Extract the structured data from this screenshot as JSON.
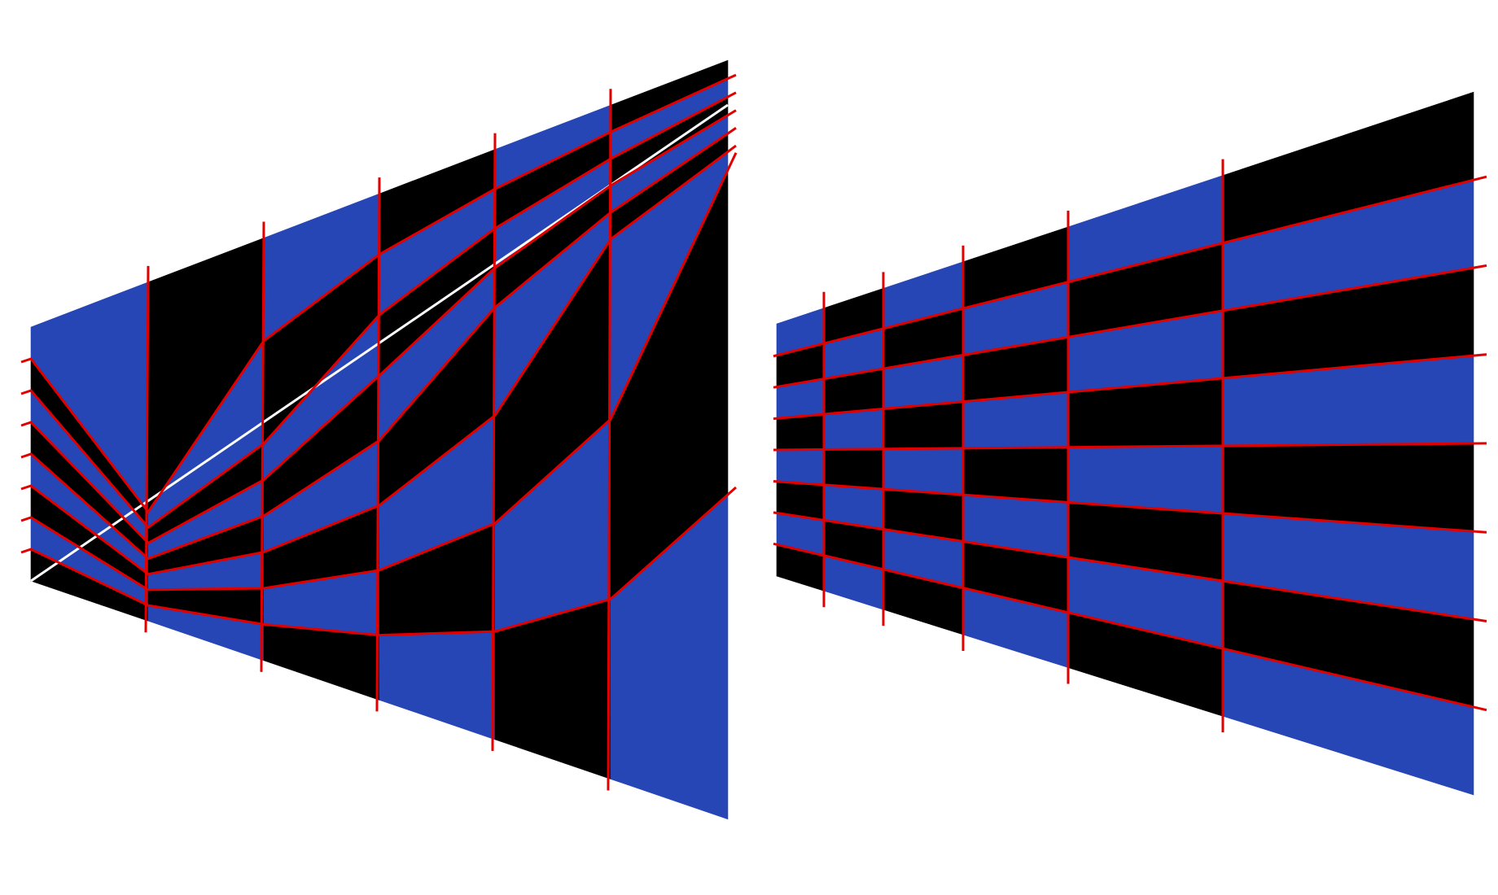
{
  "colors": {
    "background": "#ffffff",
    "tile_dark": "#000000",
    "tile_light": "#2746b5",
    "grid_line": "#e00000",
    "diagonal": "#ffffff"
  },
  "panels": [
    {
      "id": "left",
      "rows": 8,
      "columns": 6,
      "shows_diagonal": true,
      "grid_line_shape": "zigzag"
    },
    {
      "id": "right",
      "rows": 8,
      "columns": 6,
      "shows_diagonal": false,
      "grid_line_shape": "straight"
    }
  ]
}
